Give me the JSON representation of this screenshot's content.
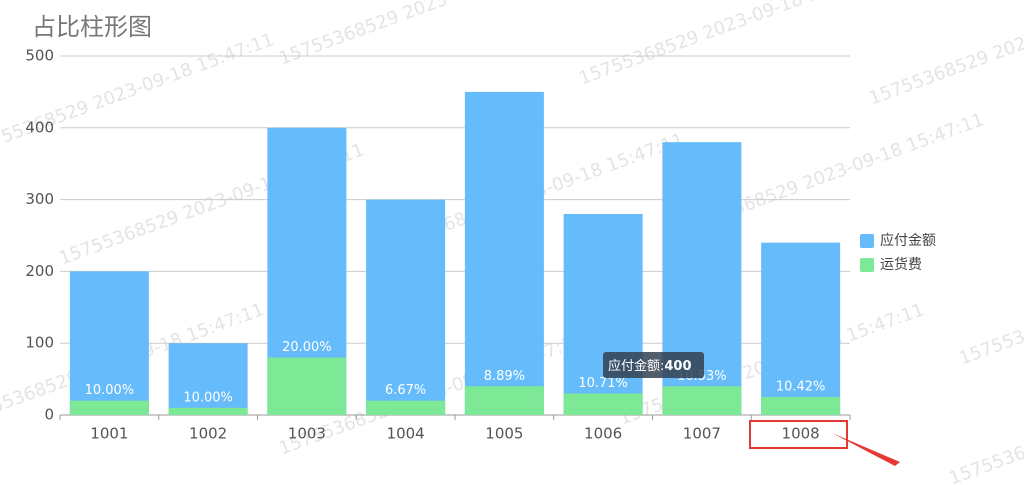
{
  "chart_data": {
    "type": "bar",
    "title": "占比柱形图",
    "categories": [
      "1001",
      "1002",
      "1003",
      "1004",
      "1005",
      "1006",
      "1007",
      "1008"
    ],
    "series": [
      {
        "name": "应付金额",
        "color": "#66bbfa",
        "values": [
          200,
          100,
          400,
          300,
          450,
          280,
          380,
          240
        ]
      },
      {
        "name": "运货费",
        "color": "#7de896",
        "values": [
          20,
          10,
          80,
          20,
          40,
          30,
          40,
          25
        ],
        "ratio_labels": [
          "10.00%",
          "10.00%",
          "20.00%",
          "6.67%",
          "8.89%",
          "10.71%",
          "10.53%",
          "10.42%"
        ]
      }
    ],
    "ylim": [
      0,
      500
    ],
    "yticks": [
      0,
      100,
      200,
      300,
      400,
      500
    ],
    "grid": true,
    "legend": "right",
    "tooltip": {
      "label": "应付金额:",
      "value": 400
    },
    "watermark": "15755368529  2023-09-18 15:47:11"
  }
}
